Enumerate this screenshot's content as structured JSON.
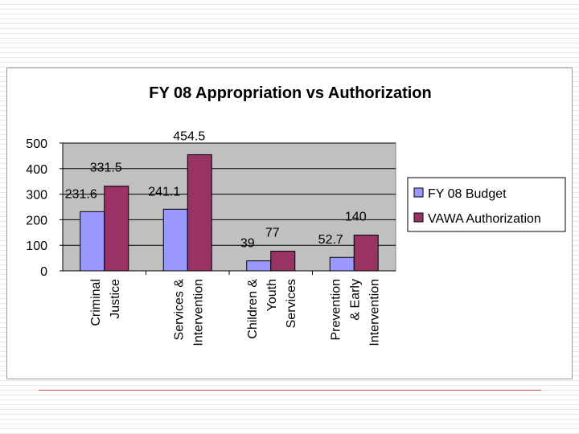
{
  "chart_data": {
    "type": "bar",
    "title": "FY 08 Appropriation vs Authorization",
    "categories": [
      [
        "Criminal",
        "Justice"
      ],
      [
        "Services &",
        "Intervention"
      ],
      [
        "Children &",
        "Youth",
        "Services"
      ],
      [
        "Prevention",
        "& Early",
        "Intervention"
      ]
    ],
    "series": [
      {
        "name": "FY 08 Budget",
        "color": "#9999ff",
        "values": [
          231.6,
          241.1,
          39,
          52.7
        ],
        "labels": [
          "231.6",
          "241.1",
          "39",
          "52.7"
        ]
      },
      {
        "name": "VAWA Authorization",
        "color": "#993366",
        "values": [
          331.5,
          454.5,
          77,
          140
        ],
        "labels": [
          "331.5",
          "454.5",
          "77",
          "140"
        ]
      }
    ],
    "ylim": [
      0,
      500
    ],
    "yticks": [
      0,
      100,
      200,
      300,
      400,
      500
    ],
    "xlabel": "",
    "ylabel": "",
    "grid": true,
    "plot_background": "#c0c0c0",
    "legend": "right"
  }
}
